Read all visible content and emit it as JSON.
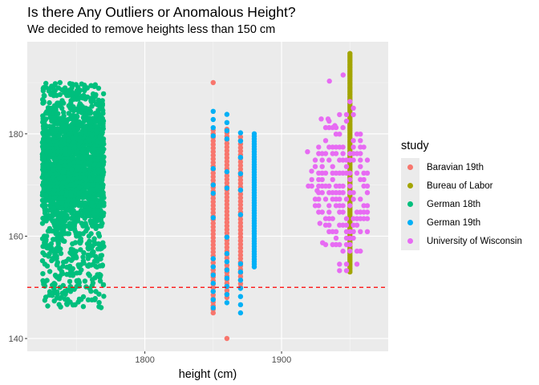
{
  "title": "Is there Any Outliers or Anomalous Height?",
  "subtitle": "We decided to remove heights less than 150 cm",
  "chart_data": {
    "type": "scatter",
    "title": "Is there Any Outliers or Anomalous Height?",
    "subtitle": "We decided to remove heights less than 150 cm",
    "xlabel": "height (cm)",
    "ylabel": "",
    "xlim": [
      1714,
      1978
    ],
    "ylim": [
      137.5,
      198
    ],
    "x_ticks": [
      1800,
      1900
    ],
    "y_ticks": [
      140,
      160,
      180
    ],
    "x_tick_labels": [
      "1800",
      "1900"
    ],
    "y_tick_labels": [
      "140",
      "160",
      "180"
    ],
    "grid": true,
    "legend_position": "right",
    "legend_title": "study",
    "reference_line": {
      "axis": "y",
      "value": 150,
      "color": "#ff0000",
      "style": "dashed"
    },
    "series": [
      {
        "name": "Baravian 19th",
        "color": "#F8766D",
        "x_values": [
          1850,
          1860,
          1870
        ],
        "y_range": [
          145,
          190
        ],
        "outliers": [
          [
            1860,
            140
          ],
          [
            1850,
            190
          ]
        ]
      },
      {
        "name": "Bureau of Labor",
        "color": "#A3A500",
        "x_values": [
          1950
        ],
        "y_range": [
          153,
          196
        ]
      },
      {
        "name": "German 18th",
        "color": "#00BF7D",
        "x_values": [
          1725,
          1770
        ],
        "y_range": [
          146,
          190
        ]
      },
      {
        "name": "German 19th",
        "color": "#00B0F6",
        "x_values": [
          1850,
          1860,
          1870,
          1880
        ],
        "y_range": [
          145,
          185
        ]
      },
      {
        "name": "University of Wisconsin",
        "color": "#E76BF3",
        "x_values": [
          1917,
          1965
        ],
        "y_range": [
          152,
          191
        ]
      }
    ]
  }
}
